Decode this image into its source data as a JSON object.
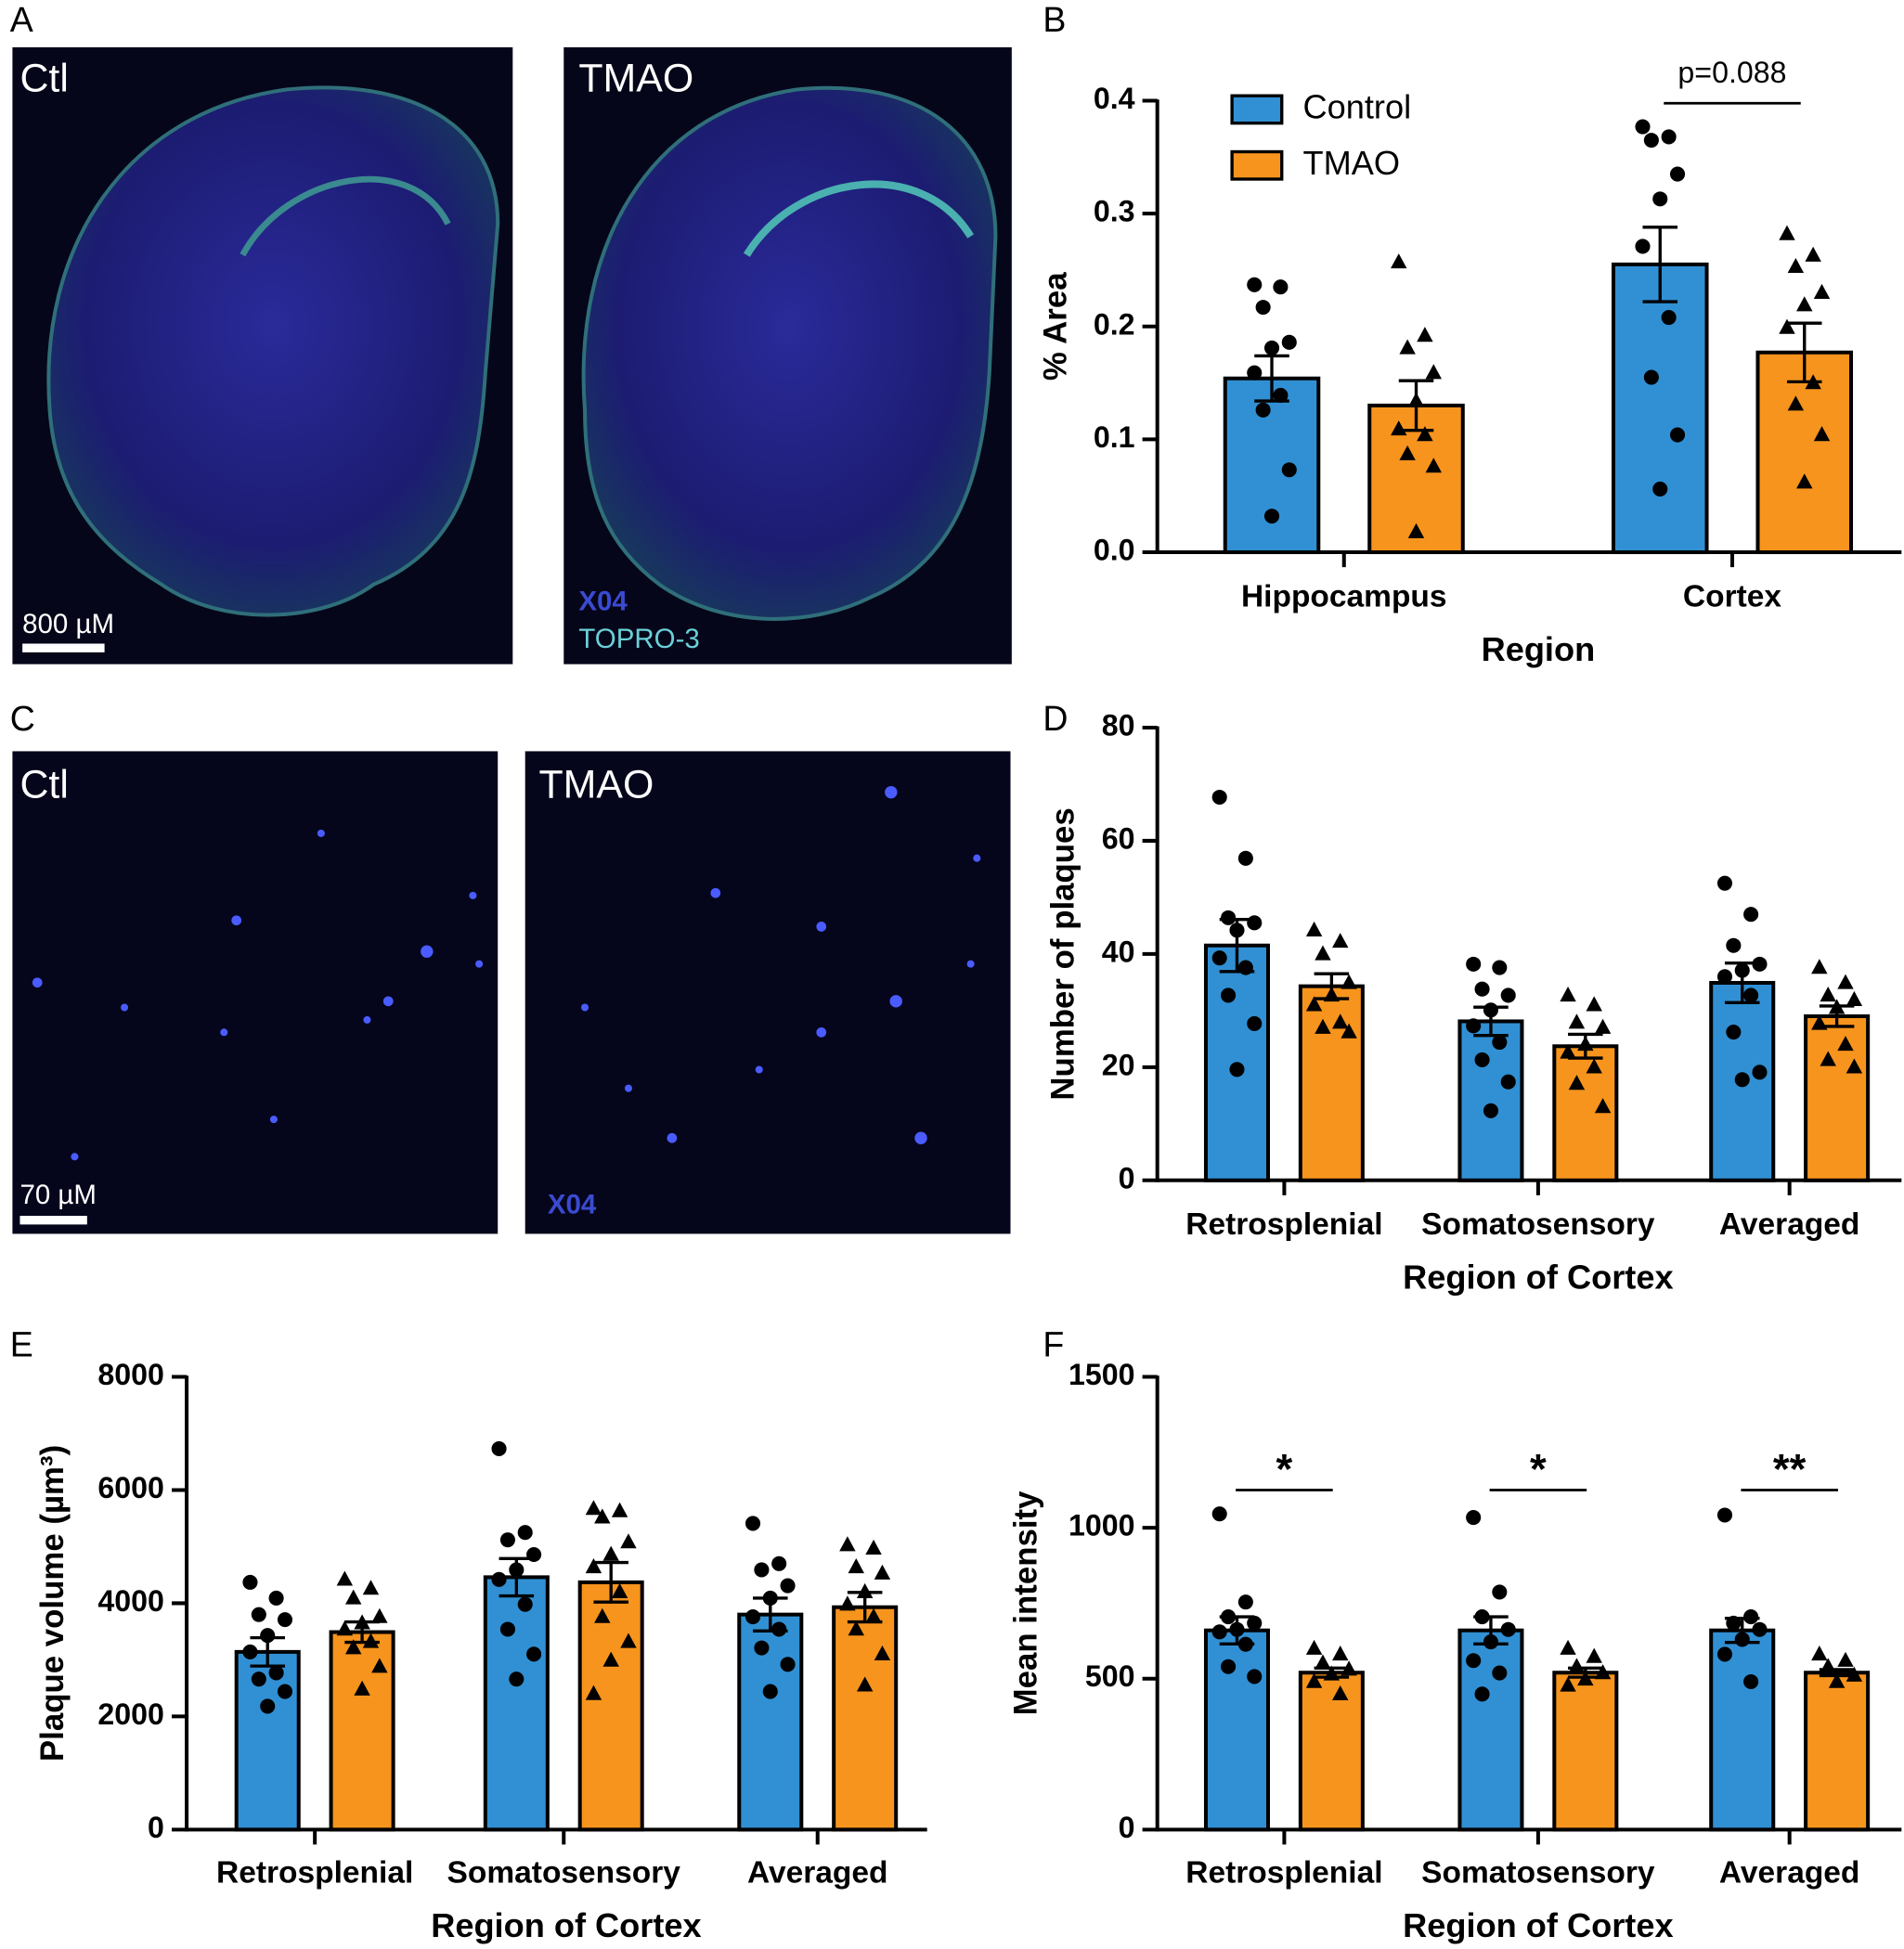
{
  "figure": {
    "panel_letters": [
      "A",
      "B",
      "C",
      "D",
      "E",
      "F"
    ],
    "image_a": {
      "left": "Ctl",
      "right": "TMAO",
      "scale_bar": "800 µM",
      "stain_1": "X04",
      "stain_2": "TOPRO-3"
    },
    "image_c": {
      "left": "Ctl",
      "right": "TMAO",
      "scale_bar": "70 µM",
      "stain": "X04"
    }
  },
  "chart_data": [
    {
      "type": "bar",
      "ylabel": "% Area",
      "xlabel": "Region",
      "categories": [
        "Hippocampus",
        "Cortex"
      ],
      "series": [
        {
          "name": "Control",
          "color": "#3190d4",
          "marker": "circle",
          "values": [
            0.154,
            0.255
          ],
          "errors": [
            0.02,
            0.033
          ],
          "points": [
            [
              0.237,
              0.235,
              0.217,
              0.186,
              0.181,
              0.159,
              0.139,
              0.126,
              0.073,
              0.032
            ],
            [
              0.377,
              0.368,
              0.365,
              0.335,
              0.313,
              0.271,
              0.208,
              0.155,
              0.104,
              0.056
            ]
          ]
        },
        {
          "name": "TMAO",
          "color": "#f7941d",
          "marker": "triangle",
          "values": [
            0.13,
            0.177
          ],
          "errors": [
            0.022,
            0.026
          ],
          "points": [
            [
              0.257,
              0.192,
              0.181,
              0.159,
              0.134,
              0.109,
              0.104,
              0.087,
              0.076,
              0.018
            ],
            [
              0.282,
              0.263,
              0.253,
              0.23,
              0.219,
              0.199,
              0.15,
              0.131,
              0.104,
              0.062
            ]
          ]
        }
      ],
      "ylim": [
        0,
        0.4
      ],
      "yticks": [
        {
          "value": 0,
          "label": "0.0"
        },
        0.1,
        0.2,
        0.3,
        0.4
      ],
      "legend": "top-left",
      "annotations": [
        null,
        "p=0.088"
      ]
    },
    {
      "type": "bar",
      "ylabel": "Number of plaques",
      "xlabel": "Region of Cortex",
      "categories": [
        "Retrosplenial",
        "Somatosensory",
        "Averaged"
      ],
      "series": [
        {
          "name": "Control",
          "color": "#3190d4",
          "marker": "circle",
          "values": [
            41.5,
            28.1,
            34.9
          ],
          "errors": [
            4.6,
            2.5,
            3.5
          ],
          "points": [
            [
              67.7,
              56.9,
              46.4,
              45.5,
              44.2,
              39.3,
              37.6,
              32.7,
              27.7,
              19.6
            ],
            [
              38.2,
              37.6,
              33.8,
              32.7,
              30.1,
              27.3,
              24.4,
              21.3,
              17.4,
              12.3
            ],
            [
              52.5,
              47.0,
              41.5,
              38.2,
              37.1,
              36.0,
              32.7,
              26.2,
              19.1,
              17.8
            ]
          ]
        },
        {
          "name": "TMAO",
          "color": "#f7941d",
          "marker": "triangle",
          "values": [
            34.3,
            23.7,
            29.0
          ],
          "errors": [
            2.2,
            2.1,
            1.8
          ],
          "points": [
            [
              44.2,
              42.2,
              40.0,
              34.9,
              32.7,
              31.0,
              27.9,
              27.0,
              26.2
            ],
            [
              32.7,
              31.0,
              27.9,
              27.0,
              24.0,
              22.6,
              20.0,
              17.1,
              13.0
            ],
            [
              37.6,
              34.9,
              32.7,
              31.9,
              30.5,
              27.7,
              24.0,
              21.3,
              20.0
            ]
          ]
        }
      ],
      "ylim": [
        0,
        80
      ],
      "yticks": [
        0,
        20,
        40,
        60,
        80
      ]
    },
    {
      "type": "bar",
      "ylabel": "Plaque volume (µm³)",
      "xlabel": "Region of Cortex",
      "categories": [
        "Retrosplenial",
        "Somatosensory",
        "Averaged"
      ],
      "series": [
        {
          "name": "Control",
          "color": "#3190d4",
          "marker": "circle",
          "values": [
            3140,
            4460,
            3800
          ],
          "errors": [
            250,
            330,
            290
          ],
          "points": [
            [
              4370,
              4090,
              3800,
              3710,
              3430,
              3140,
              2770,
              2660,
              2440,
              2180
            ],
            [
              6730,
              5250,
              5120,
              4860,
              4590,
              4420,
              3980,
              3540,
              3100,
              2660
            ],
            [
              5410,
              4700,
              4590,
              4310,
              4090,
              3760,
              3540,
              3210,
              2920,
              2440
            ]
          ]
        },
        {
          "name": "TMAO",
          "color": "#f7941d",
          "marker": "triangle",
          "values": [
            3490,
            4370,
            3930
          ],
          "errors": [
            180,
            350,
            260
          ],
          "points": [
            [
              4420,
              4260,
              4090,
              3760,
              3650,
              3540,
              3320,
              3210,
              2880,
              2480
            ],
            [
              5670,
              5630,
              5520,
              5080,
              4860,
              4640,
              4200,
              3760,
              3320,
              2990,
              2400
            ],
            [
              5030,
              4970,
              4640,
              4530,
              4200,
              3980,
              3760,
              3540,
              3100,
              2550
            ]
          ]
        }
      ],
      "ylim": [
        0,
        8000
      ],
      "yticks": [
        0,
        2000,
        4000,
        6000,
        8000
      ]
    },
    {
      "type": "bar",
      "ylabel": "Mean intensity",
      "xlabel": "Region of Cortex",
      "categories": [
        "Retrosplenial",
        "Somatosensory",
        "Averaged"
      ],
      "series": [
        {
          "name": "Control",
          "color": "#3190d4",
          "marker": "circle",
          "values": [
            660,
            660,
            660
          ],
          "errors": [
            45,
            45,
            40
          ],
          "points": [
            [
              1046,
              754,
              705,
              684,
              663,
              655,
              614,
              540,
              507
            ],
            [
              1034,
              787,
              705,
              663,
              622,
              560,
              519,
              449
            ],
            [
              1042,
              705,
              684,
              663,
              630,
              581,
              490
            ]
          ]
        },
        {
          "name": "TMAO",
          "color": "#f7941d",
          "marker": "triangle",
          "values": [
            520,
            520,
            520
          ],
          "errors": [
            15,
            15,
            10
          ],
          "points": [
            [
              600,
              581,
              552,
              531,
              515,
              490,
              449
            ],
            [
              600,
              573,
              540,
              519,
              498,
              478
            ],
            [
              581,
              560,
              540,
              511,
              490
            ]
          ]
        }
      ],
      "ylim": [
        0,
        1500
      ],
      "yticks": [
        0,
        500,
        1000,
        1500
      ],
      "annotations": [
        "*",
        "*",
        "**"
      ]
    }
  ]
}
